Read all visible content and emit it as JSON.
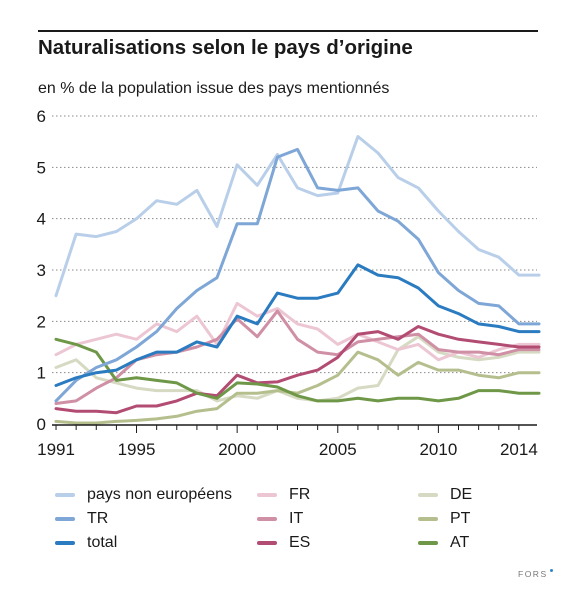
{
  "header": {
    "title": "Naturalisations selon le pays d’origine",
    "subtitle": "en % de la population issue des pays mentionnés"
  },
  "brand": {
    "label": "FORS",
    "accent": "#2e86c8"
  },
  "chart_data": {
    "type": "line",
    "title": "Naturalisations selon le pays d’origine",
    "subtitle": "en % de la population issue des pays mentionnés",
    "xlabel": "",
    "ylabel": "",
    "xlim": [
      1990.8,
      2014.9
    ],
    "ylim": [
      0,
      6
    ],
    "x_ticks": [
      1991,
      1995,
      2000,
      2005,
      2010,
      2014
    ],
    "y_ticks": [
      0,
      1,
      2,
      3,
      4,
      5,
      6
    ],
    "grid": "horizontal-dotted",
    "legend_position": "bottom",
    "x": [
      1991,
      1992,
      1993,
      1994,
      1995,
      1996,
      1997,
      1998,
      1999,
      2000,
      2001,
      2002,
      2003,
      2004,
      2005,
      2006,
      2007,
      2008,
      2009,
      2010,
      2011,
      2012,
      2013,
      2014,
      2015
    ],
    "series": [
      {
        "name": "pays non européens",
        "color": "#b9cfe9",
        "values": [
          2.5,
          3.7,
          3.65,
          3.75,
          4.0,
          4.35,
          4.28,
          4.55,
          3.85,
          5.05,
          4.65,
          5.25,
          4.6,
          4.45,
          4.5,
          5.6,
          5.28,
          4.8,
          4.6,
          4.15,
          3.75,
          3.4,
          3.25,
          2.9,
          2.9
        ]
      },
      {
        "name": "TR",
        "color": "#7ea6d6",
        "values": [
          0.45,
          0.85,
          1.1,
          1.25,
          1.5,
          1.8,
          2.25,
          2.6,
          2.85,
          3.9,
          3.9,
          5.2,
          5.35,
          4.6,
          4.55,
          4.6,
          4.15,
          3.95,
          3.6,
          2.95,
          2.6,
          2.35,
          2.3,
          1.95,
          1.95
        ]
      },
      {
        "name": "total",
        "color": "#2a7bc0",
        "values": [
          0.75,
          0.9,
          1.0,
          1.05,
          1.25,
          1.4,
          1.4,
          1.6,
          1.5,
          2.1,
          1.95,
          2.55,
          2.45,
          2.45,
          2.55,
          3.1,
          2.9,
          2.85,
          2.65,
          2.3,
          2.15,
          1.95,
          1.9,
          1.8,
          1.8
        ]
      },
      {
        "name": "FR",
        "color": "#ecc6d3",
        "values": [
          1.35,
          1.55,
          1.65,
          1.75,
          1.65,
          1.95,
          1.8,
          2.1,
          1.55,
          2.35,
          2.1,
          2.25,
          1.95,
          1.85,
          1.55,
          1.75,
          1.6,
          1.45,
          1.55,
          1.25,
          1.4,
          1.3,
          1.45,
          1.55,
          1.55
        ]
      },
      {
        "name": "IT",
        "color": "#cf8fa5",
        "values": [
          0.4,
          0.45,
          0.7,
          0.9,
          1.25,
          1.35,
          1.4,
          1.5,
          1.65,
          2.05,
          1.7,
          2.2,
          1.65,
          1.4,
          1.35,
          1.6,
          1.65,
          1.7,
          1.75,
          1.45,
          1.4,
          1.4,
          1.35,
          1.45,
          1.45
        ]
      },
      {
        "name": "ES",
        "color": "#b24c72",
        "values": [
          0.3,
          0.25,
          0.25,
          0.22,
          0.35,
          0.35,
          0.45,
          0.6,
          0.55,
          0.95,
          0.8,
          0.82,
          0.95,
          1.05,
          1.3,
          1.75,
          1.8,
          1.65,
          1.9,
          1.75,
          1.65,
          1.6,
          1.55,
          1.5,
          1.5
        ]
      },
      {
        "name": "DE",
        "color": "#d6dac2",
        "values": [
          1.1,
          1.25,
          0.9,
          0.8,
          0.7,
          0.65,
          0.65,
          0.65,
          0.45,
          0.55,
          0.5,
          0.65,
          0.5,
          0.45,
          0.5,
          0.7,
          0.75,
          1.45,
          1.7,
          1.4,
          1.3,
          1.25,
          1.3,
          1.4,
          1.4
        ]
      },
      {
        "name": "PT",
        "color": "#b5bf8e",
        "values": [
          0.05,
          0.02,
          0.02,
          0.05,
          0.07,
          0.1,
          0.15,
          0.25,
          0.3,
          0.6,
          0.6,
          0.65,
          0.6,
          0.75,
          0.95,
          1.4,
          1.25,
          0.95,
          1.2,
          1.05,
          1.05,
          0.95,
          0.9,
          1.0,
          1.0
        ]
      },
      {
        "name": "AT",
        "color": "#6e9747",
        "values": [
          1.65,
          1.55,
          1.4,
          0.85,
          0.9,
          0.85,
          0.8,
          0.6,
          0.5,
          0.8,
          0.78,
          0.72,
          0.55,
          0.45,
          0.45,
          0.5,
          0.45,
          0.5,
          0.5,
          0.45,
          0.5,
          0.65,
          0.65,
          0.6,
          0.6
        ]
      }
    ],
    "draw_order": [
      "DE",
      "PT",
      "FR",
      "IT",
      "ES",
      "AT",
      "pays non européens",
      "TR",
      "total"
    ],
    "legend": [
      [
        "pays non européens",
        "TR",
        "total"
      ],
      [
        "FR",
        "IT",
        "ES"
      ],
      [
        "DE",
        "PT",
        "AT"
      ]
    ]
  }
}
